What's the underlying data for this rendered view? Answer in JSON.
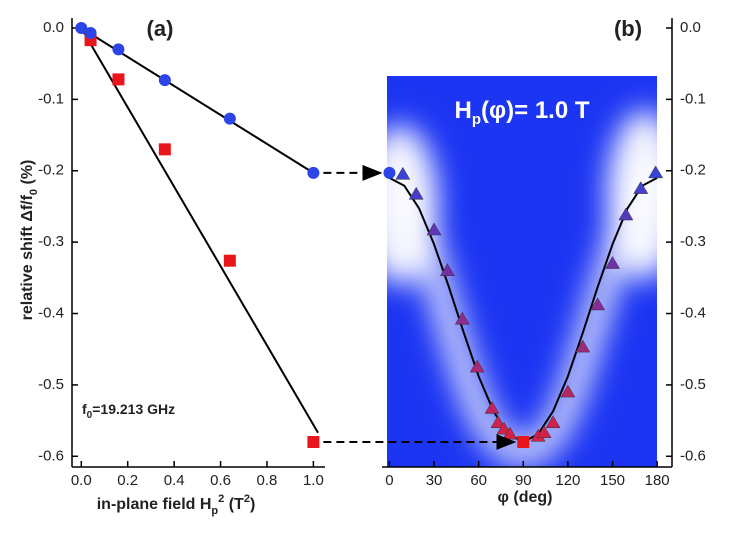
{
  "chart_data": [
    {
      "type": "scatter",
      "panel_label": "(a)",
      "xlabel": [
        "in-plane field H",
        "p",
        "2",
        " (T",
        "2",
        ")"
      ],
      "ylabel": [
        "relative shift Δf/f",
        "0",
        " (%)"
      ],
      "annotation": [
        "f",
        "0",
        "=19.213 GHz"
      ],
      "xlim": [
        -0.04,
        1.05
      ],
      "ylim": [
        -0.615,
        0.014
      ],
      "xticks": [
        {
          "value": 0,
          "label": "0.0"
        },
        0.2,
        0.4,
        0.6,
        0.8,
        {
          "value": 1,
          "label": "1.0"
        }
      ],
      "yticks": [
        {
          "value": 0,
          "label": "0.0"
        },
        -0.1,
        -0.2,
        -0.3,
        -0.4,
        -0.5,
        -0.6
      ],
      "yaxis_side": "left",
      "series": [
        {
          "marker": "line",
          "color": "#000000",
          "x": [
            0,
            1.0
          ],
          "values": [
            0,
            -0.203
          ]
        },
        {
          "marker": "line",
          "color": "#000000",
          "x": [
            0,
            1.02
          ],
          "values": [
            0,
            -0.567
          ]
        },
        {
          "marker": "square",
          "color": "#e8161b",
          "x": [
            0.04,
            0.16,
            0.36,
            0.64,
            1.0
          ],
          "values": [
            -0.017,
            -0.072,
            -0.17,
            -0.326,
            -0.58
          ]
        },
        {
          "marker": "circle",
          "color": "#2b45e6",
          "x": [
            0,
            0.04,
            0.16,
            0.36,
            0.64,
            1.0
          ],
          "values": [
            0,
            -0.007,
            -0.03,
            -0.073,
            -0.127,
            -0.203
          ]
        }
      ]
    },
    {
      "type": "scatter",
      "panel_label": "(b)",
      "title": [
        "H",
        "p",
        "(φ)= 1.0 T"
      ],
      "xlabel": [
        "φ (deg)"
      ],
      "xlim": [
        -5,
        190
      ],
      "ylim": [
        -0.615,
        0.014
      ],
      "xticks": [
        0,
        30,
        60,
        90,
        120,
        150,
        180
      ],
      "yticks": [
        {
          "value": 0,
          "label": "0.0"
        },
        -0.1,
        -0.2,
        -0.3,
        -0.4,
        -0.5,
        -0.6
      ],
      "yaxis_side": "right",
      "series": [
        {
          "marker": "line",
          "color": "#000000",
          "x": [
            0,
            10,
            20,
            30,
            40,
            50,
            60,
            70,
            80,
            90,
            100,
            110,
            120,
            130,
            140,
            150,
            160,
            170,
            180
          ],
          "values": [
            -0.21,
            -0.221,
            -0.253,
            -0.303,
            -0.363,
            -0.427,
            -0.488,
            -0.537,
            -0.569,
            -0.58,
            -0.569,
            -0.537,
            -0.488,
            -0.427,
            -0.363,
            -0.303,
            -0.253,
            -0.221,
            -0.21
          ]
        },
        {
          "marker": "circle",
          "color": "#2b45e6",
          "x": [
            0
          ],
          "values": [
            -0.203
          ]
        },
        {
          "marker": "triangle",
          "colors": [
            "#3b41d6",
            "#4a3ccb",
            "#5e36b8",
            "#7330a3",
            "#8c2b8c",
            "#a72873",
            "#c1235a",
            "#cb2250",
            "#d0214b",
            "#d52045",
            "#d52045",
            "#d2214a",
            "#cb2250",
            "#b72563",
            "#9b297e",
            "#852d93",
            "#6e32a8",
            "#5538c0",
            "#4640ce",
            "#3a42d8"
          ],
          "x": [
            9,
            18,
            30,
            39,
            49,
            59,
            69,
            73,
            77,
            81,
            100,
            104,
            110,
            120,
            130,
            140,
            150,
            159,
            169,
            179
          ],
          "values": [
            -0.205,
            -0.233,
            -0.283,
            -0.34,
            -0.408,
            -0.475,
            -0.533,
            -0.553,
            -0.562,
            -0.569,
            -0.572,
            -0.567,
            -0.553,
            -0.51,
            -0.447,
            -0.388,
            -0.33,
            -0.262,
            -0.225,
            -0.203
          ]
        },
        {
          "marker": "square",
          "color": "#e8161b",
          "x": [
            90
          ],
          "values": [
            -0.58
          ]
        }
      ]
    }
  ]
}
